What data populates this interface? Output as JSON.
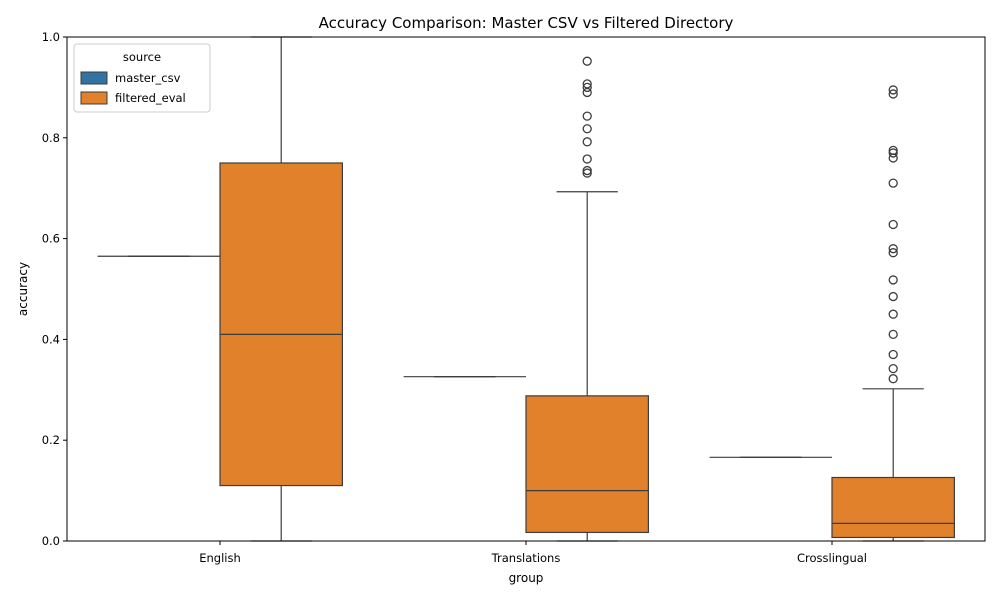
{
  "chart_data": {
    "type": "box",
    "title": "Accuracy Comparison: Master CSV vs Filtered Directory",
    "xlabel": "group",
    "ylabel": "accuracy",
    "ylim": [
      0,
      1
    ],
    "yticks": [
      "0.0",
      "0.2",
      "0.4",
      "0.6",
      "0.8",
      "1.0"
    ],
    "categories": [
      "English",
      "Translations",
      "Crosslingual"
    ],
    "legend": {
      "title": "source",
      "placement": "upper-left",
      "entries": [
        "master_csv",
        "filtered_eval"
      ]
    },
    "series": [
      {
        "name": "master_csv",
        "color": "#3274a1",
        "boxes": [
          {
            "category": "English",
            "min": 0.565,
            "q1": 0.565,
            "median": 0.565,
            "q3": 0.565,
            "max": 0.565,
            "outliers": []
          },
          {
            "category": "Translations",
            "min": 0.326,
            "q1": 0.326,
            "median": 0.326,
            "q3": 0.326,
            "max": 0.326,
            "outliers": []
          },
          {
            "category": "Crosslingual",
            "min": 0.166,
            "q1": 0.166,
            "median": 0.166,
            "q3": 0.166,
            "max": 0.166,
            "outliers": []
          }
        ]
      },
      {
        "name": "filtered_eval",
        "color": "#e1812c",
        "boxes": [
          {
            "category": "English",
            "min": 0.0,
            "q1": 0.11,
            "median": 0.41,
            "q3": 0.75,
            "max": 1.0,
            "outliers": []
          },
          {
            "category": "Translations",
            "min": 0.0,
            "q1": 0.017,
            "median": 0.1,
            "q3": 0.288,
            "max": 0.693,
            "outliers": [
              0.952,
              0.907,
              0.9,
              0.89,
              0.843,
              0.818,
              0.792,
              0.758,
              0.735,
              0.73
            ]
          },
          {
            "category": "Crosslingual",
            "min": 0.0,
            "q1": 0.007,
            "median": 0.035,
            "q3": 0.126,
            "max": 0.302,
            "outliers": [
              0.895,
              0.887,
              0.775,
              0.77,
              0.76,
              0.71,
              0.628,
              0.58,
              0.572,
              0.518,
              0.485,
              0.45,
              0.41,
              0.37,
              0.342,
              0.322
            ]
          }
        ]
      }
    ]
  }
}
